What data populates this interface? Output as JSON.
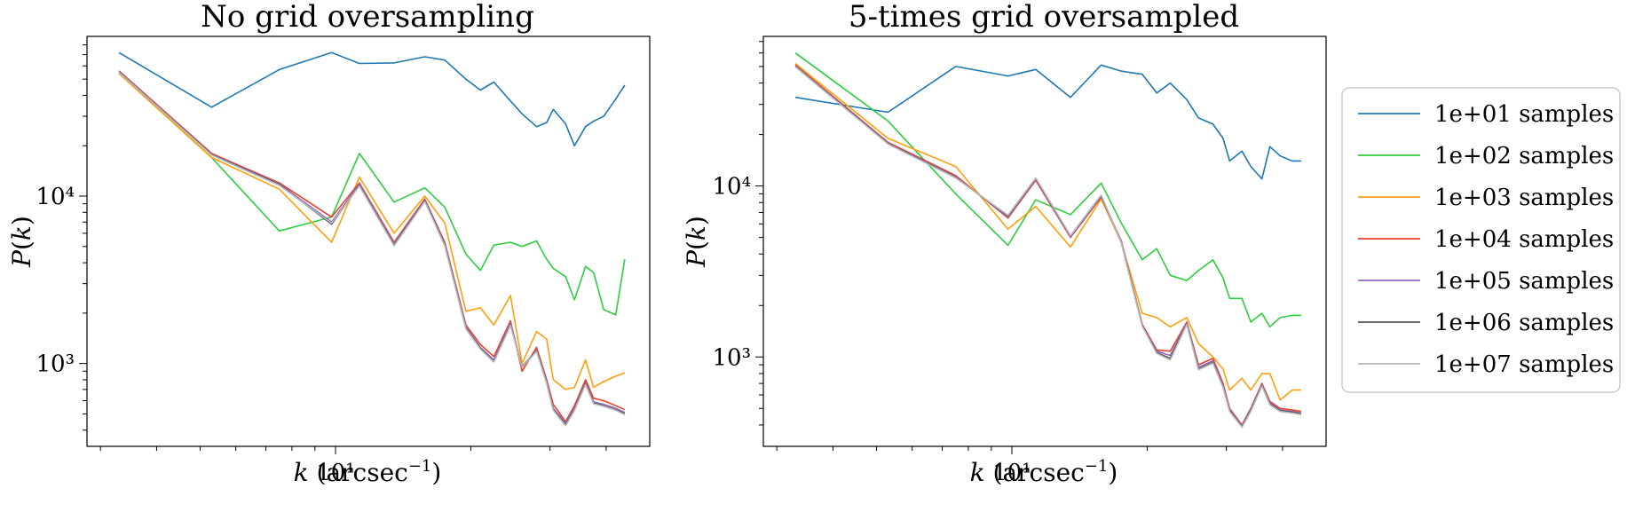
{
  "figure": {
    "legend_placement": "right, outside plots, vertically centered",
    "legend": [
      {
        "label": "1e+01 samples",
        "color": "#1f77b4"
      },
      {
        "label": "1e+02 samples",
        "color": "#2ecc40"
      },
      {
        "label": "1e+03 samples",
        "color": "#ff9f0f"
      },
      {
        "label": "1e+04 samples",
        "color": "#e8402c"
      },
      {
        "label": "1e+05 samples",
        "color": "#9467bd"
      },
      {
        "label": "1e+06 samples",
        "color": "#555555"
      },
      {
        "label": "1e+07 samples",
        "color": "#b8b8b8"
      }
    ]
  },
  "chart_data": [
    {
      "type": "line",
      "title": "No grid oversampling",
      "xlabel": "k (arcsec⁻¹)",
      "ylabel": "P(k)",
      "xscale": "log",
      "yscale": "log",
      "xlim": [
        2.8,
        50
      ],
      "ylim": [
        320,
        90000
      ],
      "grid": false,
      "xticks": [
        {
          "value": 10,
          "label": "10¹"
        }
      ],
      "yticks": [
        {
          "value": 1000,
          "label": "10³"
        },
        {
          "value": 10000,
          "label": "10⁴"
        }
      ],
      "series": [
        {
          "name": "1e+01 samples",
          "color": "#1f77b4",
          "x": [
            3.3,
            5.3,
            7.5,
            9.8,
            11.3,
            13.5,
            15.8,
            17.5,
            19.5,
            21,
            22.5,
            24.5,
            26,
            28,
            29.5,
            30.5,
            32.5,
            34,
            36,
            37.5,
            39.5,
            42,
            44
          ],
          "y": [
            72000,
            34000,
            57000,
            72000,
            62000,
            62500,
            68000,
            65000,
            50000,
            43000,
            48000,
            37000,
            31000,
            26000,
            27500,
            33000,
            27000,
            20000,
            26000,
            28000,
            30000,
            38000,
            46000
          ]
        },
        {
          "name": "1e+02 samples",
          "color": "#2ecc40",
          "x": [
            3.3,
            5.3,
            7.5,
            9.8,
            11.3,
            13.5,
            15.8,
            17.5,
            19.5,
            21,
            22.5,
            24.5,
            26,
            28,
            29.5,
            30.5,
            32.5,
            34,
            36,
            37.5,
            39.5,
            42,
            44
          ],
          "y": [
            54000,
            17000,
            6200,
            7500,
            18000,
            9200,
            11200,
            8600,
            4500,
            3600,
            5100,
            5300,
            5000,
            5400,
            4200,
            3700,
            3300,
            2400,
            3800,
            3500,
            2100,
            1950,
            4200
          ]
        },
        {
          "name": "1e+03 samples",
          "color": "#ff9f0f",
          "x": [
            3.3,
            5.3,
            7.5,
            9.8,
            11.3,
            13.5,
            15.8,
            17.5,
            19.5,
            21,
            22.5,
            24.5,
            26,
            28,
            29.5,
            30.5,
            32.5,
            34,
            36,
            37.5,
            39.5,
            42,
            44
          ],
          "y": [
            54000,
            17000,
            11000,
            5300,
            13000,
            6000,
            10000,
            6900,
            2050,
            2150,
            1700,
            2550,
            1000,
            1550,
            1400,
            800,
            700,
            720,
            1050,
            720,
            780,
            840,
            880
          ]
        },
        {
          "name": "1e+04 samples",
          "color": "#e8402c",
          "x": [
            3.3,
            5.3,
            7.5,
            9.8,
            11.3,
            13.5,
            15.8,
            17.5,
            19.5,
            21,
            22.5,
            24.5,
            26,
            28,
            29.5,
            30.5,
            32.5,
            34,
            36,
            37.5,
            39.5,
            42,
            44
          ],
          "y": [
            56000,
            18000,
            12000,
            7500,
            12000,
            5300,
            9600,
            5300,
            1700,
            1300,
            1100,
            1800,
            900,
            1250,
            800,
            570,
            450,
            560,
            800,
            620,
            600,
            560,
            530
          ]
        },
        {
          "name": "1e+05 samples",
          "color": "#9467bd",
          "x": [
            3.3,
            5.3,
            7.5,
            9.8,
            11.3,
            13.5,
            15.8,
            17.5,
            19.5,
            21,
            22.5,
            24.5,
            26,
            28,
            29.5,
            30.5,
            32.5,
            34,
            36,
            37.5,
            39.5,
            42,
            44
          ],
          "y": [
            55500,
            17800,
            11800,
            7000,
            11800,
            5200,
            9500,
            5200,
            1650,
            1250,
            1050,
            1750,
            950,
            1200,
            780,
            540,
            440,
            540,
            770,
            590,
            570,
            540,
            510
          ]
        },
        {
          "name": "1e+06 samples",
          "color": "#555555",
          "x": [
            3.3,
            5.3,
            7.5,
            9.8,
            11.3,
            13.5,
            15.8,
            17.5,
            19.5,
            21,
            22.5,
            24.5,
            26,
            28,
            29.5,
            30.5,
            32.5,
            34,
            36,
            37.5,
            39.5,
            42,
            44
          ],
          "y": [
            55000,
            17700,
            11700,
            6800,
            11600,
            5100,
            9400,
            5100,
            1620,
            1230,
            1030,
            1700,
            960,
            1190,
            770,
            530,
            430,
            530,
            760,
            580,
            560,
            530,
            500
          ]
        },
        {
          "name": "1e+07 samples",
          "color": "#b8b8b8",
          "x": [
            3.3,
            5.3,
            7.5,
            9.8,
            11.3,
            13.5,
            15.8,
            17.5,
            19.5,
            21,
            22.5,
            24.5,
            26,
            28,
            29.5,
            30.5,
            32.5,
            34,
            36,
            37.5,
            39.5,
            42,
            44
          ],
          "y": [
            54800,
            17600,
            11600,
            6900,
            11500,
            5050,
            9300,
            5050,
            1610,
            1220,
            1020,
            1690,
            950,
            1180,
            760,
            525,
            425,
            525,
            750,
            575,
            555,
            525,
            495
          ]
        }
      ]
    },
    {
      "type": "line",
      "title": "5-times grid oversampled",
      "xlabel": "k (arcsec⁻¹)",
      "ylabel": "P(k)",
      "xscale": "log",
      "yscale": "log",
      "xlim": [
        2.8,
        50
      ],
      "ylim": [
        300,
        75000
      ],
      "grid": false,
      "xticks": [
        {
          "value": 10,
          "label": "10¹"
        }
      ],
      "yticks": [
        {
          "value": 1000,
          "label": "10³"
        },
        {
          "value": 10000,
          "label": "10⁴"
        }
      ],
      "series": [
        {
          "name": "1e+01 samples",
          "color": "#1f77b4",
          "x": [
            3.3,
            5.3,
            7.5,
            9.8,
            11.3,
            13.5,
            15.8,
            17.5,
            19.5,
            21,
            22.5,
            24.5,
            26,
            28,
            29.5,
            30.5,
            32.5,
            34,
            36,
            37.5,
            39.5,
            42,
            44
          ],
          "y": [
            33000,
            27000,
            50000,
            44000,
            48000,
            33000,
            51000,
            47000,
            45000,
            35000,
            40000,
            32000,
            25000,
            23000,
            19000,
            14000,
            16000,
            13000,
            11000,
            17000,
            15000,
            14000,
            14000
          ]
        },
        {
          "name": "1e+02 samples",
          "color": "#2ecc40",
          "x": [
            3.3,
            5.3,
            7.5,
            9.8,
            11.3,
            13.5,
            15.8,
            17.5,
            19.5,
            21,
            22.5,
            24.5,
            26,
            28,
            29.5,
            30.5,
            32.5,
            34,
            36,
            37.5,
            39.5,
            42,
            44
          ],
          "y": [
            60000,
            24000,
            9000,
            4500,
            8300,
            6800,
            10400,
            6100,
            3700,
            4300,
            3000,
            2800,
            3200,
            3700,
            2900,
            2200,
            2200,
            1600,
            1800,
            1500,
            1700,
            1750,
            1750
          ]
        },
        {
          "name": "1e+03 samples",
          "color": "#ff9f0f",
          "x": [
            3.3,
            5.3,
            7.5,
            9.8,
            11.3,
            13.5,
            15.8,
            17.5,
            19.5,
            21,
            22.5,
            24.5,
            26,
            28,
            29.5,
            30.5,
            32.5,
            34,
            36,
            37.5,
            39.5,
            42,
            44
          ],
          "y": [
            52000,
            19000,
            13000,
            5600,
            7600,
            4400,
            8400,
            4700,
            1800,
            1700,
            1500,
            1700,
            1200,
            1000,
            850,
            640,
            750,
            640,
            800,
            800,
            560,
            640,
            640
          ]
        },
        {
          "name": "1e+04 samples",
          "color": "#e8402c",
          "x": [
            3.3,
            5.3,
            7.5,
            9.8,
            11.3,
            13.5,
            15.8,
            17.5,
            19.5,
            21,
            22.5,
            24.5,
            26,
            28,
            29.5,
            30.5,
            32.5,
            34,
            36,
            37.5,
            39.5,
            42,
            44
          ],
          "y": [
            51000,
            18000,
            11500,
            6500,
            10800,
            5000,
            8600,
            4800,
            1550,
            1100,
            1080,
            1600,
            900,
            980,
            700,
            500,
            400,
            500,
            700,
            550,
            500,
            490,
            480
          ]
        },
        {
          "name": "1e+05 samples",
          "color": "#9467bd",
          "x": [
            3.3,
            5.3,
            7.5,
            9.8,
            11.3,
            13.5,
            15.8,
            17.5,
            19.5,
            21,
            22.5,
            24.5,
            26,
            28,
            29.5,
            30.5,
            32.5,
            34,
            36,
            37.5,
            39.5,
            42,
            44
          ],
          "y": [
            50500,
            17800,
            11300,
            6600,
            11000,
            5050,
            8700,
            4750,
            1530,
            1080,
            1020,
            1580,
            870,
            950,
            680,
            490,
            395,
            490,
            690,
            540,
            490,
            480,
            470
          ]
        },
        {
          "name": "1e+06 samples",
          "color": "#555555",
          "x": [
            3.3,
            5.3,
            7.5,
            9.8,
            11.3,
            13.5,
            15.8,
            17.5,
            19.5,
            21,
            22.5,
            24.5,
            26,
            28,
            29.5,
            30.5,
            32.5,
            34,
            36,
            37.5,
            39.5,
            42,
            44
          ],
          "y": [
            50000,
            17700,
            11200,
            6700,
            11100,
            5100,
            8800,
            4700,
            1520,
            1060,
            980,
            1560,
            850,
            930,
            670,
            485,
            390,
            485,
            680,
            530,
            485,
            475,
            465
          ]
        },
        {
          "name": "1e+07 samples",
          "color": "#b8b8b8",
          "x": [
            3.3,
            5.3,
            7.5,
            9.8,
            11.3,
            13.5,
            15.8,
            17.5,
            19.5,
            21,
            22.5,
            24.5,
            26,
            28,
            29.5,
            30.5,
            32.5,
            34,
            36,
            37.5,
            39.5,
            42,
            44
          ],
          "y": [
            49800,
            17600,
            11150,
            6750,
            11150,
            5120,
            8850,
            4690,
            1510,
            1050,
            960,
            1550,
            840,
            920,
            665,
            480,
            388,
            480,
            675,
            525,
            480,
            470,
            460
          ]
        }
      ]
    }
  ]
}
